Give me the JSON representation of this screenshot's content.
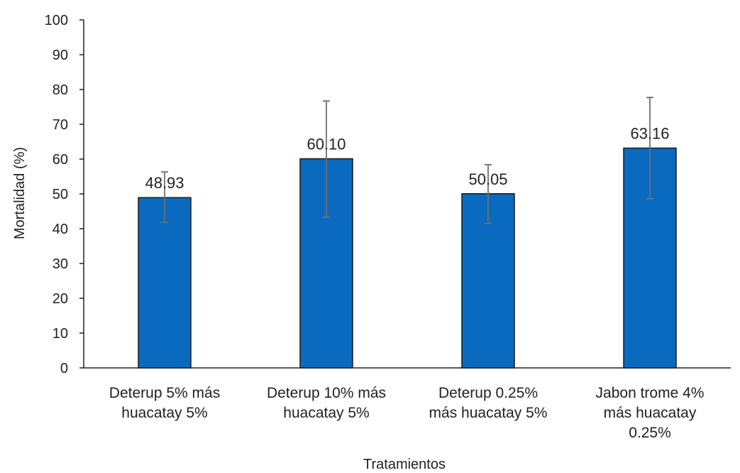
{
  "chart_data": {
    "type": "bar",
    "categories": [
      [
        "Deterup 5% más",
        "huacatay 5%"
      ],
      [
        "Deterup 10% más",
        "huacatay 5%"
      ],
      [
        "Deterup 0.25%",
        "más huacatay 5%"
      ],
      [
        "Jabon trome 4%",
        "más huacatay",
        "0.25%"
      ]
    ],
    "values": [
      48.93,
      60.1,
      50.05,
      63.16
    ],
    "value_labels": [
      "48.93",
      "60.10",
      "50.05",
      "63.16"
    ],
    "error_low": [
      41.8,
      43.3,
      41.5,
      48.6
    ],
    "error_high": [
      56.3,
      76.7,
      58.4,
      77.7
    ],
    "xlabel": "Tratamientos",
    "ylabel": "Mortalidad (%)",
    "ylim": [
      0,
      100
    ],
    "yticks": [
      "0",
      "10",
      "20",
      "30",
      "40",
      "50",
      "60",
      "70",
      "80",
      "90",
      "100"
    ],
    "grid": false,
    "colors": {
      "bar": "#0a6abf",
      "bar_edge": "#1b1b1b",
      "axis": "#222222",
      "error_bar": "#6f6f6f"
    }
  }
}
